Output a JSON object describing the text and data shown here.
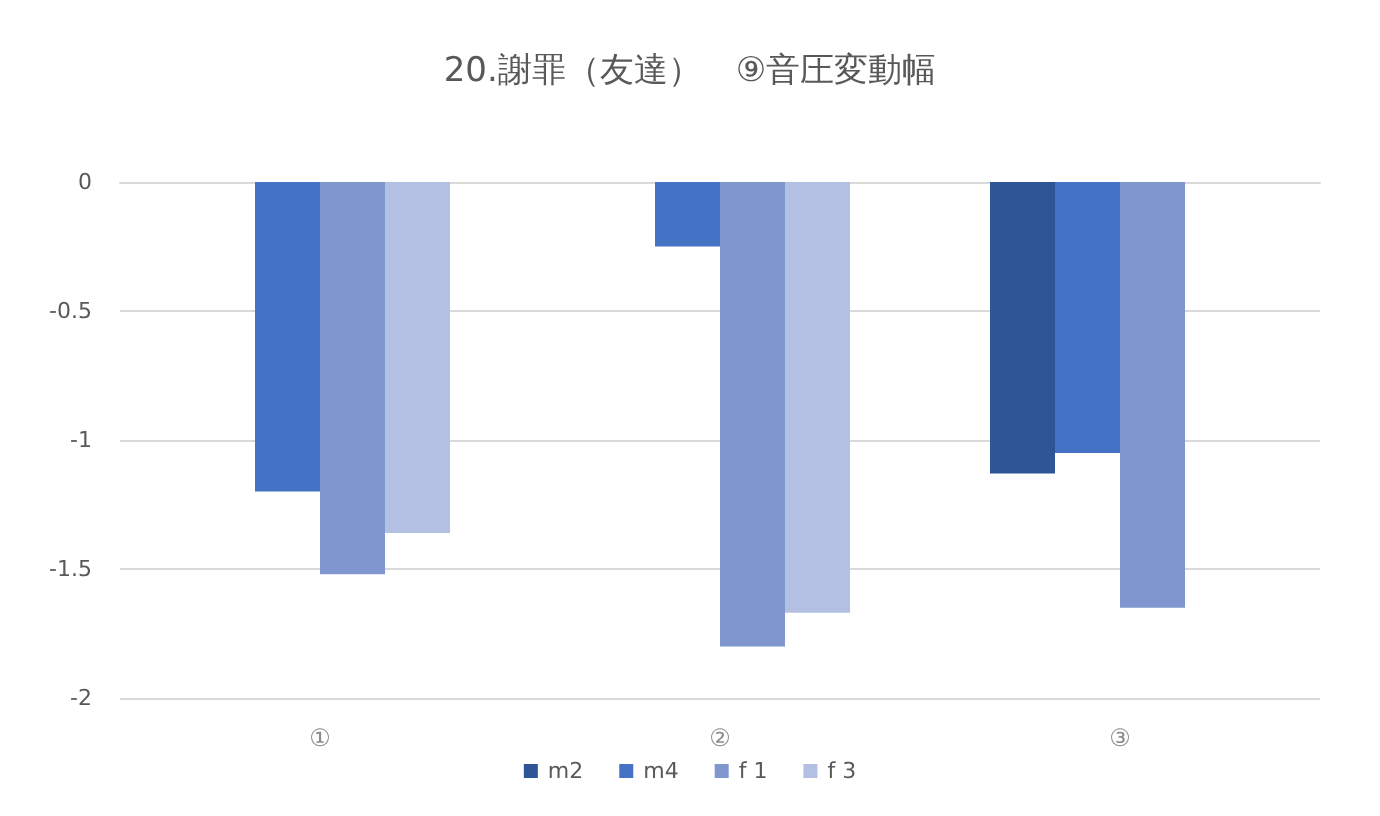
{
  "chart_data": {
    "type": "bar",
    "title": "20.謝罪（友達）　⑨音圧変動幅",
    "categories": [
      "①",
      "②",
      "③"
    ],
    "series": [
      {
        "name": "m2",
        "color": "#2f5597",
        "values": [
          null,
          null,
          -1.13
        ]
      },
      {
        "name": "m4",
        "color": "#4472c4",
        "values": [
          -1.2,
          -0.25,
          -1.05
        ]
      },
      {
        "name": "f 1",
        "color": "#7f96cf",
        "values": [
          -1.52,
          -1.8,
          -1.65
        ]
      },
      {
        "name": "f 3",
        "color": "#b4c0e2",
        "values": [
          -1.36,
          -1.67,
          null
        ]
      }
    ],
    "ylim": [
      -2,
      0
    ],
    "yticks": [
      -2,
      -1.5,
      -1,
      -0.5,
      0
    ],
    "grid": "y",
    "legend": "bottom"
  }
}
